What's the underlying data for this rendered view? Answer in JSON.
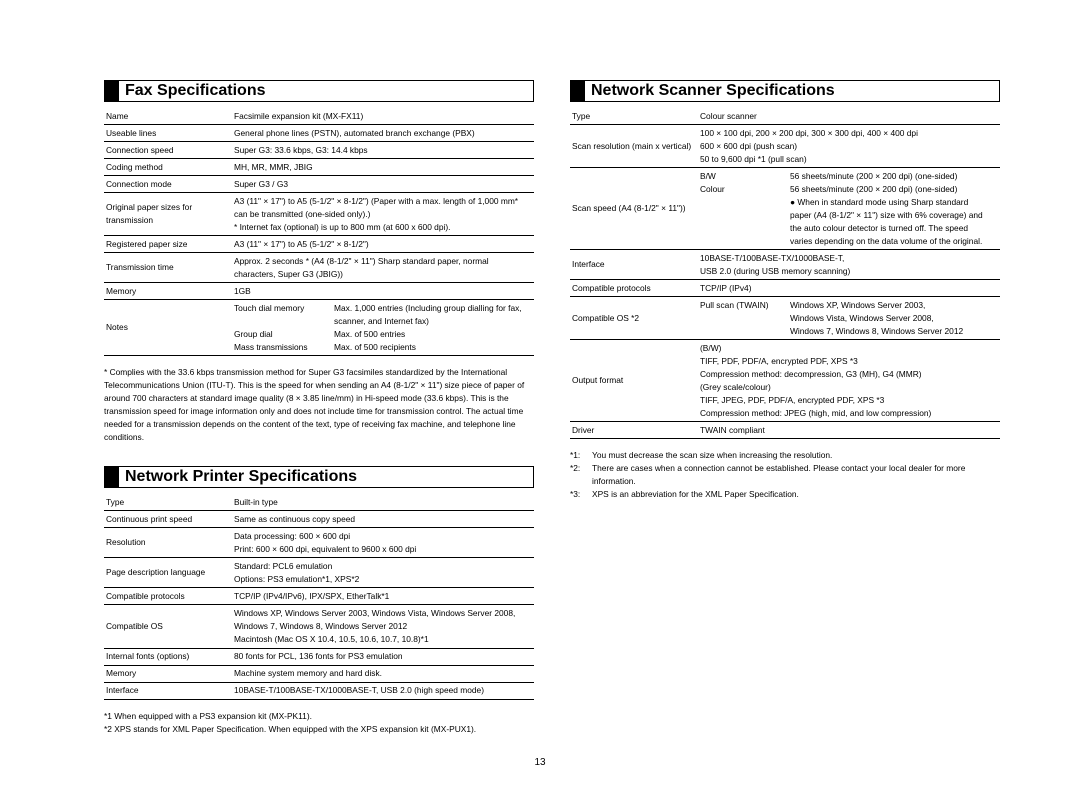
{
  "page_number": "13",
  "left": {
    "fax": {
      "title": "Fax Specifications",
      "rows": [
        {
          "k": "Name",
          "v": "Facsimile expansion kit (MX-FX11)"
        },
        {
          "k": "Useable lines",
          "v": "General phone lines (PSTN), automated branch exchange (PBX)"
        },
        {
          "k": "Connection speed",
          "v": "Super G3: 33.6 kbps, G3: 14.4 kbps"
        },
        {
          "k": "Coding method",
          "v": "MH, MR, MMR, JBIG"
        },
        {
          "k": "Connection mode",
          "v": "Super G3 / G3"
        },
        {
          "k": "Original paper sizes for transmission",
          "v": "A3 (11\" × 17\") to A5 (5-1/2\" × 8-1/2\") (Paper with a max. length of 1,000 mm* can be transmitted (one-sided only).)\n* Internet fax (optional) is up to 800 mm (at 600 x 600 dpi)."
        },
        {
          "k": "Registered paper size",
          "v": "A3 (11\" × 17\") to A5 (5-1/2\" × 8-1/2\")"
        },
        {
          "k": "Transmission time",
          "v": "Approx. 2 seconds * (A4 (8-1/2\" × 11\") Sharp standard paper, normal characters, Super G3 (JBIG))"
        },
        {
          "k": "Memory",
          "v": "1GB"
        },
        {
          "k": "Notes",
          "sub": [
            {
              "s": "Touch dial memory",
              "sv": "Max. 1,000 entries (Including group dialling for fax, scanner, and Internet fax)"
            },
            {
              "s": "Group dial",
              "sv": "Max. of 500 entries"
            },
            {
              "s": "Mass transmissions",
              "sv": "Max. of 500 recipients"
            }
          ]
        }
      ],
      "note": "* Complies with the 33.6 kbps transmission method for Super G3 facsimiles standardized by the International Telecommunications Union (ITU-T). This is the speed for when sending an A4 (8-1/2\" × 11\") size piece of paper of around 700 characters at standard image quality (8 × 3.85 line/mm) in Hi-speed mode (33.6 kbps). This is the transmission speed for image information only and does not include time for transmission control. The actual time needed for a transmission depends on the content of the text, type of receiving fax machine, and telephone line conditions."
    },
    "printer": {
      "title": "Network Printer Specifications",
      "rows": [
        {
          "k": "Type",
          "v": "Built-in type"
        },
        {
          "k": "Continuous print speed",
          "v": "Same as continuous copy speed"
        },
        {
          "k": "Resolution",
          "v": "Data processing: 600 × 600 dpi\nPrint: 600 × 600 dpi, equivalent to 9600 x 600 dpi"
        },
        {
          "k": "Page description language",
          "v": "Standard: PCL6 emulation\nOptions: PS3 emulation*1, XPS*2"
        },
        {
          "k": "Compatible protocols",
          "v": "TCP/IP (IPv4/IPv6), IPX/SPX, EtherTalk*1"
        },
        {
          "k": "Compatible OS",
          "v": "Windows XP, Windows Server 2003, Windows Vista, Windows Server 2008, Windows 7, Windows 8, Windows Server 2012\nMacintosh (Mac OS X 10.4, 10.5, 10.6, 10.7, 10.8)*1"
        },
        {
          "k": "Internal fonts (options)",
          "v": "80 fonts for PCL, 136 fonts for PS3 emulation"
        },
        {
          "k": "Memory",
          "v": "Machine system memory and hard disk."
        },
        {
          "k": "Interface",
          "v": "10BASE-T/100BASE-TX/1000BASE-T, USB 2.0 (high speed mode)"
        }
      ],
      "footnotes": [
        "*1 When equipped with a PS3 expansion kit (MX-PK11).",
        "*2 XPS stands for XML Paper Specification. When equipped with the XPS expansion kit (MX-PUX1)."
      ]
    }
  },
  "right": {
    "scanner": {
      "title": "Network Scanner Specifications",
      "rows": [
        {
          "k": "Type",
          "v": "Colour scanner"
        },
        {
          "k": "Scan resolution (main x vertical)",
          "v": "100 × 100 dpi, 200 × 200 dpi, 300 × 300 dpi, 400 × 400 dpi\n600 × 600 dpi (push scan)\n50 to 9,600 dpi *1 (pull scan)"
        },
        {
          "k": "Scan speed (A4 (8-1/2\" × 11\"))",
          "sub": [
            {
              "s": "B/W",
              "sv": "56 sheets/minute (200 × 200 dpi) (one-sided)"
            },
            {
              "s": "Colour",
              "sv": "56 sheets/minute (200 × 200 dpi) (one-sided)"
            },
            {
              "s": "",
              "sv": "● When in standard mode using Sharp standard paper (A4 (8-1/2\" × 11\") size with 6% coverage) and the auto colour detector is turned off. The speed varies depending on the data volume of the original."
            }
          ]
        },
        {
          "k": "Interface",
          "v": "10BASE-T/100BASE-TX/1000BASE-T,\nUSB 2.0 (during USB memory scanning)"
        },
        {
          "k": "Compatible protocols",
          "v": "TCP/IP (IPv4)"
        },
        {
          "k": "Compatible OS *2",
          "sub": [
            {
              "s": "Pull scan (TWAIN)",
              "sv": "Windows XP, Windows Server 2003,\nWindows Vista, Windows Server 2008,\nWindows 7, Windows 8, Windows Server 2012"
            }
          ]
        },
        {
          "k": "Output format",
          "v": "(B/W)\nTIFF, PDF, PDF/A, encrypted PDF, XPS *3\nCompression method: decompression, G3 (MH), G4 (MMR)\n(Grey scale/colour)\nTIFF, JPEG, PDF, PDF/A, encrypted PDF, XPS *3\nCompression method: JPEG (high, mid, and low compression)"
        },
        {
          "k": "Driver",
          "v": "TWAIN compliant"
        }
      ],
      "footnotes": [
        {
          "m": "*1:",
          "t": "You must decrease the scan size when increasing the resolution."
        },
        {
          "m": "*2:",
          "t": "There are cases when a connection cannot be established. Please contact your local dealer for more information."
        },
        {
          "m": "*3:",
          "t": "XPS is an abbreviation for the XML Paper Specification."
        }
      ]
    }
  }
}
